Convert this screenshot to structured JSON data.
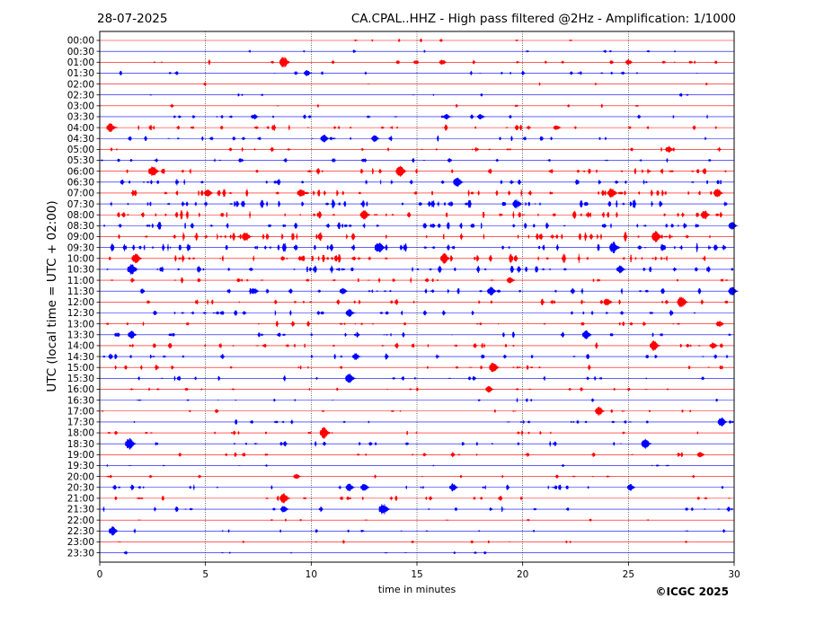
{
  "chart_data": {
    "type": "line",
    "date": "28-07-2025",
    "title": "CA.CPAL..HHZ - High pass filtered @2Hz - Amplification: 1/1000",
    "xlabel": "time in minutes",
    "ylabel": "UTC (local time = UTC + 02:00)",
    "copyright": "©ICGC 2025",
    "xlim": [
      0,
      30
    ],
    "x_ticks": [
      0,
      5,
      10,
      15,
      20,
      25,
      30
    ],
    "x_tick_labels": [
      "0",
      "5",
      "10",
      "15",
      "20",
      "25",
      "30"
    ],
    "vertical_gridlines_at": [
      5,
      10,
      15,
      20,
      25
    ],
    "row_labels": [
      "00:00",
      "00:30",
      "01:00",
      "01:30",
      "02:00",
      "02:30",
      "03:00",
      "03:30",
      "04:00",
      "04:30",
      "05:00",
      "05:30",
      "06:00",
      "06:30",
      "07:00",
      "07:30",
      "08:00",
      "08:30",
      "09:00",
      "09:30",
      "10:00",
      "10:30",
      "11:00",
      "11:30",
      "12:00",
      "12:30",
      "13:00",
      "13:30",
      "14:00",
      "14:30",
      "15:00",
      "15:30",
      "16:00",
      "16:30",
      "17:00",
      "17:30",
      "18:00",
      "18:30",
      "19:00",
      "19:30",
      "20:00",
      "20:30",
      "21:00",
      "21:30",
      "22:00",
      "22:30",
      "23:00",
      "23:30"
    ],
    "trace_colors": [
      "#ff0000",
      "#0000ff"
    ],
    "activity": [
      0.08,
      0.1,
      0.35,
      0.3,
      0.05,
      0.1,
      0.15,
      0.3,
      0.5,
      0.45,
      0.35,
      0.35,
      0.6,
      0.55,
      0.85,
      0.9,
      0.9,
      0.8,
      0.95,
      0.95,
      0.85,
      0.75,
      0.4,
      0.5,
      0.5,
      0.5,
      0.4,
      0.45,
      0.5,
      0.45,
      0.4,
      0.35,
      0.3,
      0.2,
      0.2,
      0.35,
      0.35,
      0.4,
      0.3,
      0.15,
      0.2,
      0.4,
      0.4,
      0.35,
      0.1,
      0.2,
      0.15,
      0.1
    ],
    "events": [
      {
        "row": 2,
        "minute": 8.7,
        "amp": 1.0
      },
      {
        "row": 2,
        "minute": 16.2,
        "amp": 0.5
      },
      {
        "row": 2,
        "minute": 25.0,
        "amp": 0.5
      },
      {
        "row": 3,
        "minute": 9.8,
        "amp": 0.5
      },
      {
        "row": 7,
        "minute": 7.3,
        "amp": 0.5
      },
      {
        "row": 7,
        "minute": 16.4,
        "amp": 0.5
      },
      {
        "row": 7,
        "minute": 18.0,
        "amp": 0.5
      },
      {
        "row": 8,
        "minute": 0.5,
        "amp": 0.8
      },
      {
        "row": 8,
        "minute": 21.6,
        "amp": 0.5
      },
      {
        "row": 9,
        "minute": 10.6,
        "amp": 0.7
      },
      {
        "row": 9,
        "minute": 13.0,
        "amp": 0.6
      },
      {
        "row": 10,
        "minute": 26.9,
        "amp": 0.6
      },
      {
        "row": 12,
        "minute": 2.5,
        "amp": 1.0
      },
      {
        "row": 12,
        "minute": 14.2,
        "amp": 1.0
      },
      {
        "row": 13,
        "minute": 16.9,
        "amp": 0.9
      },
      {
        "row": 14,
        "minute": 5.1,
        "amp": 0.7
      },
      {
        "row": 14,
        "minute": 9.5,
        "amp": 0.7
      },
      {
        "row": 14,
        "minute": 24.2,
        "amp": 0.9
      },
      {
        "row": 14,
        "minute": 29.2,
        "amp": 0.8
      },
      {
        "row": 15,
        "minute": 19.7,
        "amp": 0.8
      },
      {
        "row": 16,
        "minute": 12.5,
        "amp": 0.9
      },
      {
        "row": 16,
        "minute": 28.6,
        "amp": 0.8
      },
      {
        "row": 17,
        "minute": 29.9,
        "amp": 0.7
      },
      {
        "row": 18,
        "minute": 6.9,
        "amp": 0.8
      },
      {
        "row": 18,
        "minute": 26.3,
        "amp": 1.0
      },
      {
        "row": 19,
        "minute": 13.2,
        "amp": 1.0
      },
      {
        "row": 19,
        "minute": 24.3,
        "amp": 1.0
      },
      {
        "row": 20,
        "minute": 1.7,
        "amp": 0.9
      },
      {
        "row": 20,
        "minute": 16.3,
        "amp": 0.9
      },
      {
        "row": 21,
        "minute": 1.5,
        "amp": 1.0
      },
      {
        "row": 21,
        "minute": 24.6,
        "amp": 0.7
      },
      {
        "row": 22,
        "minute": 19.4,
        "amp": 0.6
      },
      {
        "row": 23,
        "minute": 7.3,
        "amp": 0.6
      },
      {
        "row": 23,
        "minute": 11.5,
        "amp": 0.6
      },
      {
        "row": 23,
        "minute": 18.5,
        "amp": 0.8
      },
      {
        "row": 23,
        "minute": 29.9,
        "amp": 0.8
      },
      {
        "row": 24,
        "minute": 27.5,
        "amp": 1.0
      },
      {
        "row": 24,
        "minute": 24.0,
        "amp": 0.7
      },
      {
        "row": 25,
        "minute": 11.8,
        "amp": 0.7
      },
      {
        "row": 26,
        "minute": 29.3,
        "amp": 0.6
      },
      {
        "row": 27,
        "minute": 1.5,
        "amp": 0.7
      },
      {
        "row": 27,
        "minute": 23.0,
        "amp": 0.8
      },
      {
        "row": 28,
        "minute": 26.2,
        "amp": 0.9
      },
      {
        "row": 28,
        "minute": 29.0,
        "amp": 0.6
      },
      {
        "row": 29,
        "minute": 12.1,
        "amp": 0.6
      },
      {
        "row": 30,
        "minute": 18.6,
        "amp": 0.9
      },
      {
        "row": 31,
        "minute": 11.8,
        "amp": 0.9
      },
      {
        "row": 32,
        "minute": 18.4,
        "amp": 0.6
      },
      {
        "row": 34,
        "minute": 23.6,
        "amp": 0.8
      },
      {
        "row": 35,
        "minute": 29.4,
        "amp": 0.8
      },
      {
        "row": 36,
        "minute": 10.6,
        "amp": 1.0
      },
      {
        "row": 37,
        "minute": 1.4,
        "amp": 1.0
      },
      {
        "row": 37,
        "minute": 25.8,
        "amp": 0.9
      },
      {
        "row": 38,
        "minute": 28.4,
        "amp": 0.5
      },
      {
        "row": 40,
        "minute": 9.3,
        "amp": 0.5
      },
      {
        "row": 41,
        "minute": 11.8,
        "amp": 0.7
      },
      {
        "row": 41,
        "minute": 12.5,
        "amp": 0.7
      },
      {
        "row": 41,
        "minute": 16.7,
        "amp": 0.7
      },
      {
        "row": 41,
        "minute": 25.1,
        "amp": 0.6
      },
      {
        "row": 42,
        "minute": 8.7,
        "amp": 0.9
      },
      {
        "row": 43,
        "minute": 13.4,
        "amp": 1.0
      },
      {
        "row": 43,
        "minute": 8.7,
        "amp": 0.6
      },
      {
        "row": 45,
        "minute": 0.6,
        "amp": 0.8
      }
    ]
  }
}
